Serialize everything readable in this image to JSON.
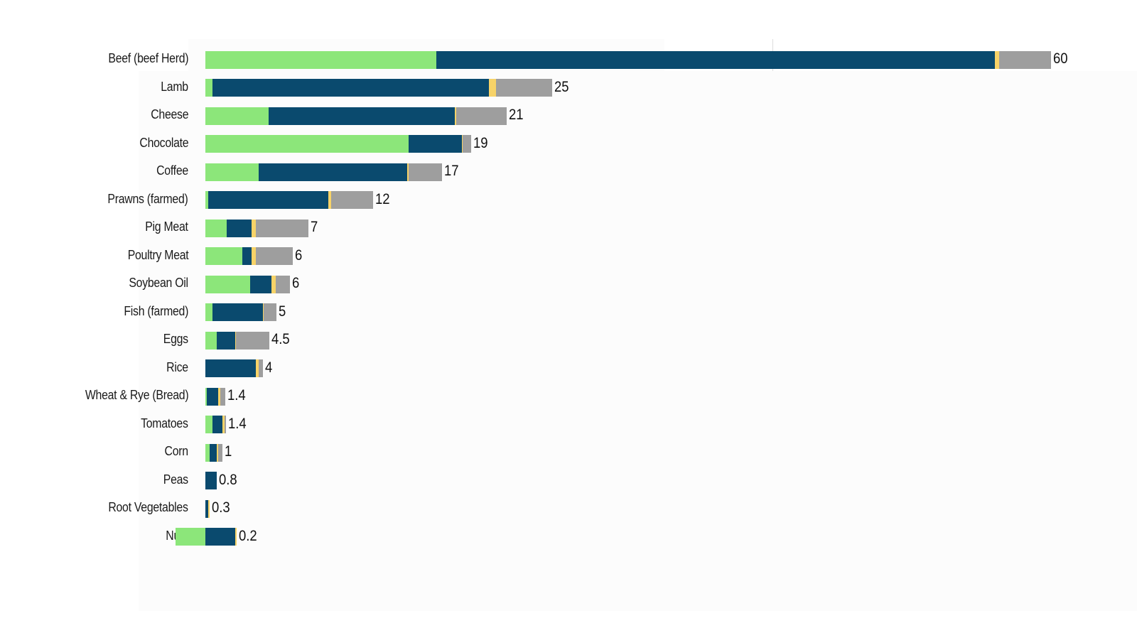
{
  "chart_data": {
    "type": "bar",
    "orientation": "horizontal",
    "stacked": true,
    "title": "",
    "xlabel": "",
    "ylabel": "",
    "xlim": [
      -2.2,
      60
    ],
    "grid": false,
    "legend": "none",
    "categories": [
      "Beef (beef Herd)",
      "Lamb",
      "Cheese",
      "Chocolate",
      "Coffee",
      "Prawns (farmed)",
      "Pig Meat",
      "Poultry Meat",
      "Soybean Oil",
      "Fish (farmed)",
      "Eggs",
      "Rice",
      "Wheat & Rye (Bread)",
      "Tomatoes",
      "Corn",
      "Peas",
      "Root Vegetables",
      "Nuts"
    ],
    "totals": [
      "60",
      "25",
      "21",
      "19",
      "17",
      "12",
      "7",
      "6",
      "6",
      "5",
      "4.5",
      "4",
      "1.4",
      "1.4",
      "1",
      "0.8",
      "0.3",
      "0.2"
    ],
    "colors": [
      "#8ce67a",
      "#0a4a6e",
      "#f7d368",
      "#9e9e9e"
    ],
    "series": [
      {
        "values": [
          16.4,
          0.5,
          4.5,
          14.4,
          3.8,
          0.2,
          1.5,
          2.6,
          3.2,
          0.5,
          0.8,
          0,
          0.1,
          0.5,
          0.3,
          0,
          0,
          -2.1
        ]
      },
      {
        "values": [
          39.6,
          19.6,
          13.2,
          3.8,
          10.5,
          8.5,
          1.8,
          0.7,
          1.5,
          3.6,
          1.3,
          3.6,
          0.8,
          0.7,
          0.5,
          0.8,
          0.2,
          2.1
        ]
      },
      {
        "values": [
          0.3,
          0.5,
          0.1,
          0.05,
          0.1,
          0.2,
          0.3,
          0.3,
          0.3,
          0.05,
          0.05,
          0.2,
          0.15,
          0.15,
          0.1,
          0,
          0.05,
          0.1
        ]
      },
      {
        "values": [
          3.7,
          4.0,
          3.6,
          0.6,
          2.4,
          3.0,
          3.7,
          2.6,
          1.0,
          0.9,
          2.4,
          0.3,
          0.35,
          0.05,
          0.3,
          0,
          0,
          0
        ]
      }
    ]
  }
}
